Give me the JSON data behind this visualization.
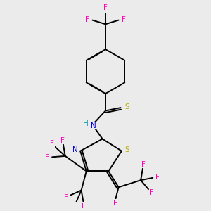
{
  "background_color": "#ebebeb",
  "figsize": [
    3.0,
    3.0
  ],
  "dpi": 100,
  "colors": {
    "C": "#000000",
    "N": "#0000dd",
    "S": "#bbaa00",
    "F": "#ff00bb",
    "H": "#009999",
    "bond": "#000000"
  },
  "bond_lw": 1.4,
  "font_size": 7.5
}
